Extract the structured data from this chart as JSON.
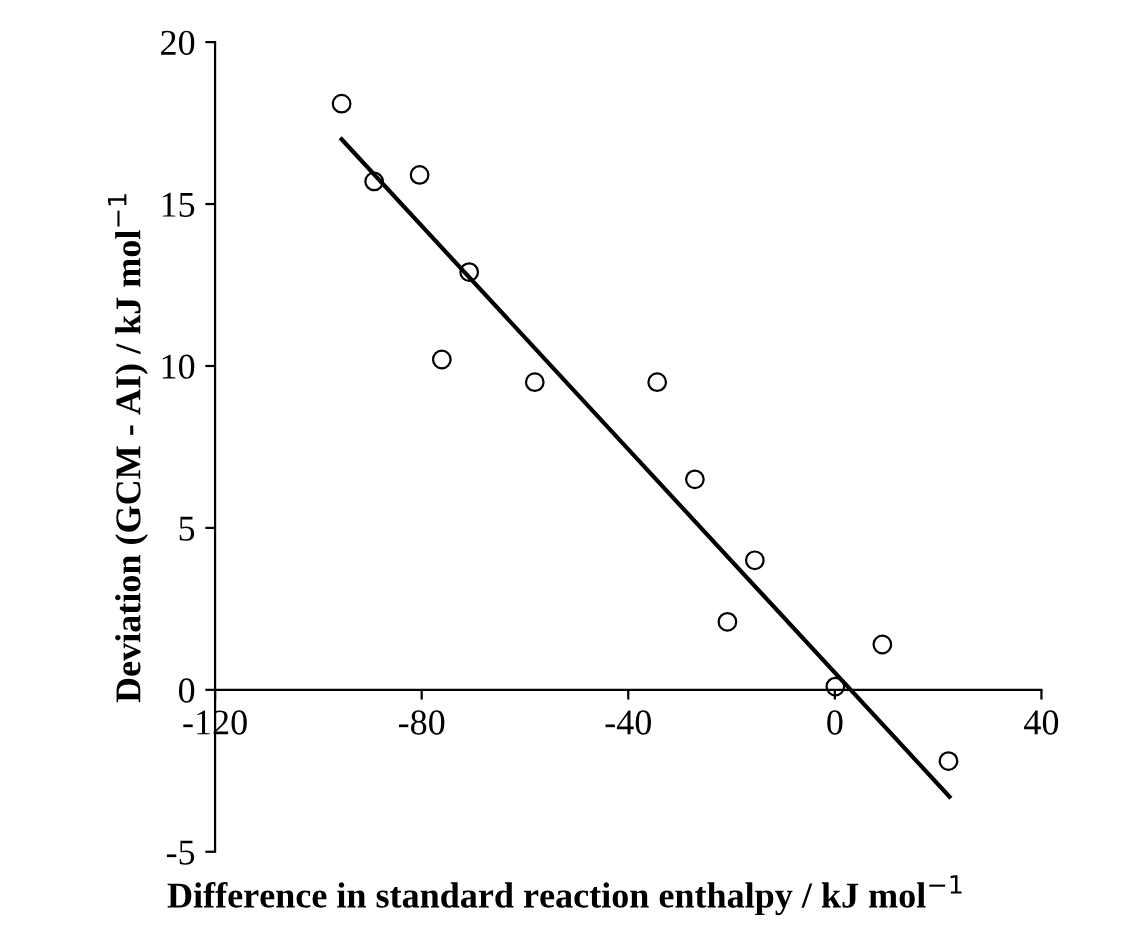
{
  "chart_data": {
    "type": "scatter",
    "xlabel": "Difference in standard reaction enthalpy / kJ mol$^{−1}$",
    "ylabel": "Deviation (GCM - AI) / kJ mol$^{−1}$",
    "xlim": [
      -120,
      40
    ],
    "xticks": [
      -120,
      -80,
      -40,
      0,
      40
    ],
    "ylim": [
      -5,
      20
    ],
    "yticks": [
      -5,
      0,
      5,
      10,
      15,
      20
    ],
    "grid": false,
    "marker": "circle",
    "series": [
      {
        "color": "#000000",
        "x": [
          -95.5,
          -89.2,
          -80.4,
          -70.8,
          -76.1,
          -58.1,
          -34.4,
          -27.1,
          -15.5,
          -20.8,
          9.2,
          0.1,
          22.0
        ],
        "values": [
          18.1,
          15.7,
          15.9,
          12.9,
          10.2,
          9.5,
          9.5,
          6.5,
          4.0,
          2.1,
          1.4,
          0.1,
          -2.2
        ]
      },
      {
        "type": "line",
        "color": "#000000",
        "marker": "none",
        "x": [
          -95.5,
          22.2
        ],
        "values": [
          17.0,
          -3.3
        ]
      }
    ]
  }
}
